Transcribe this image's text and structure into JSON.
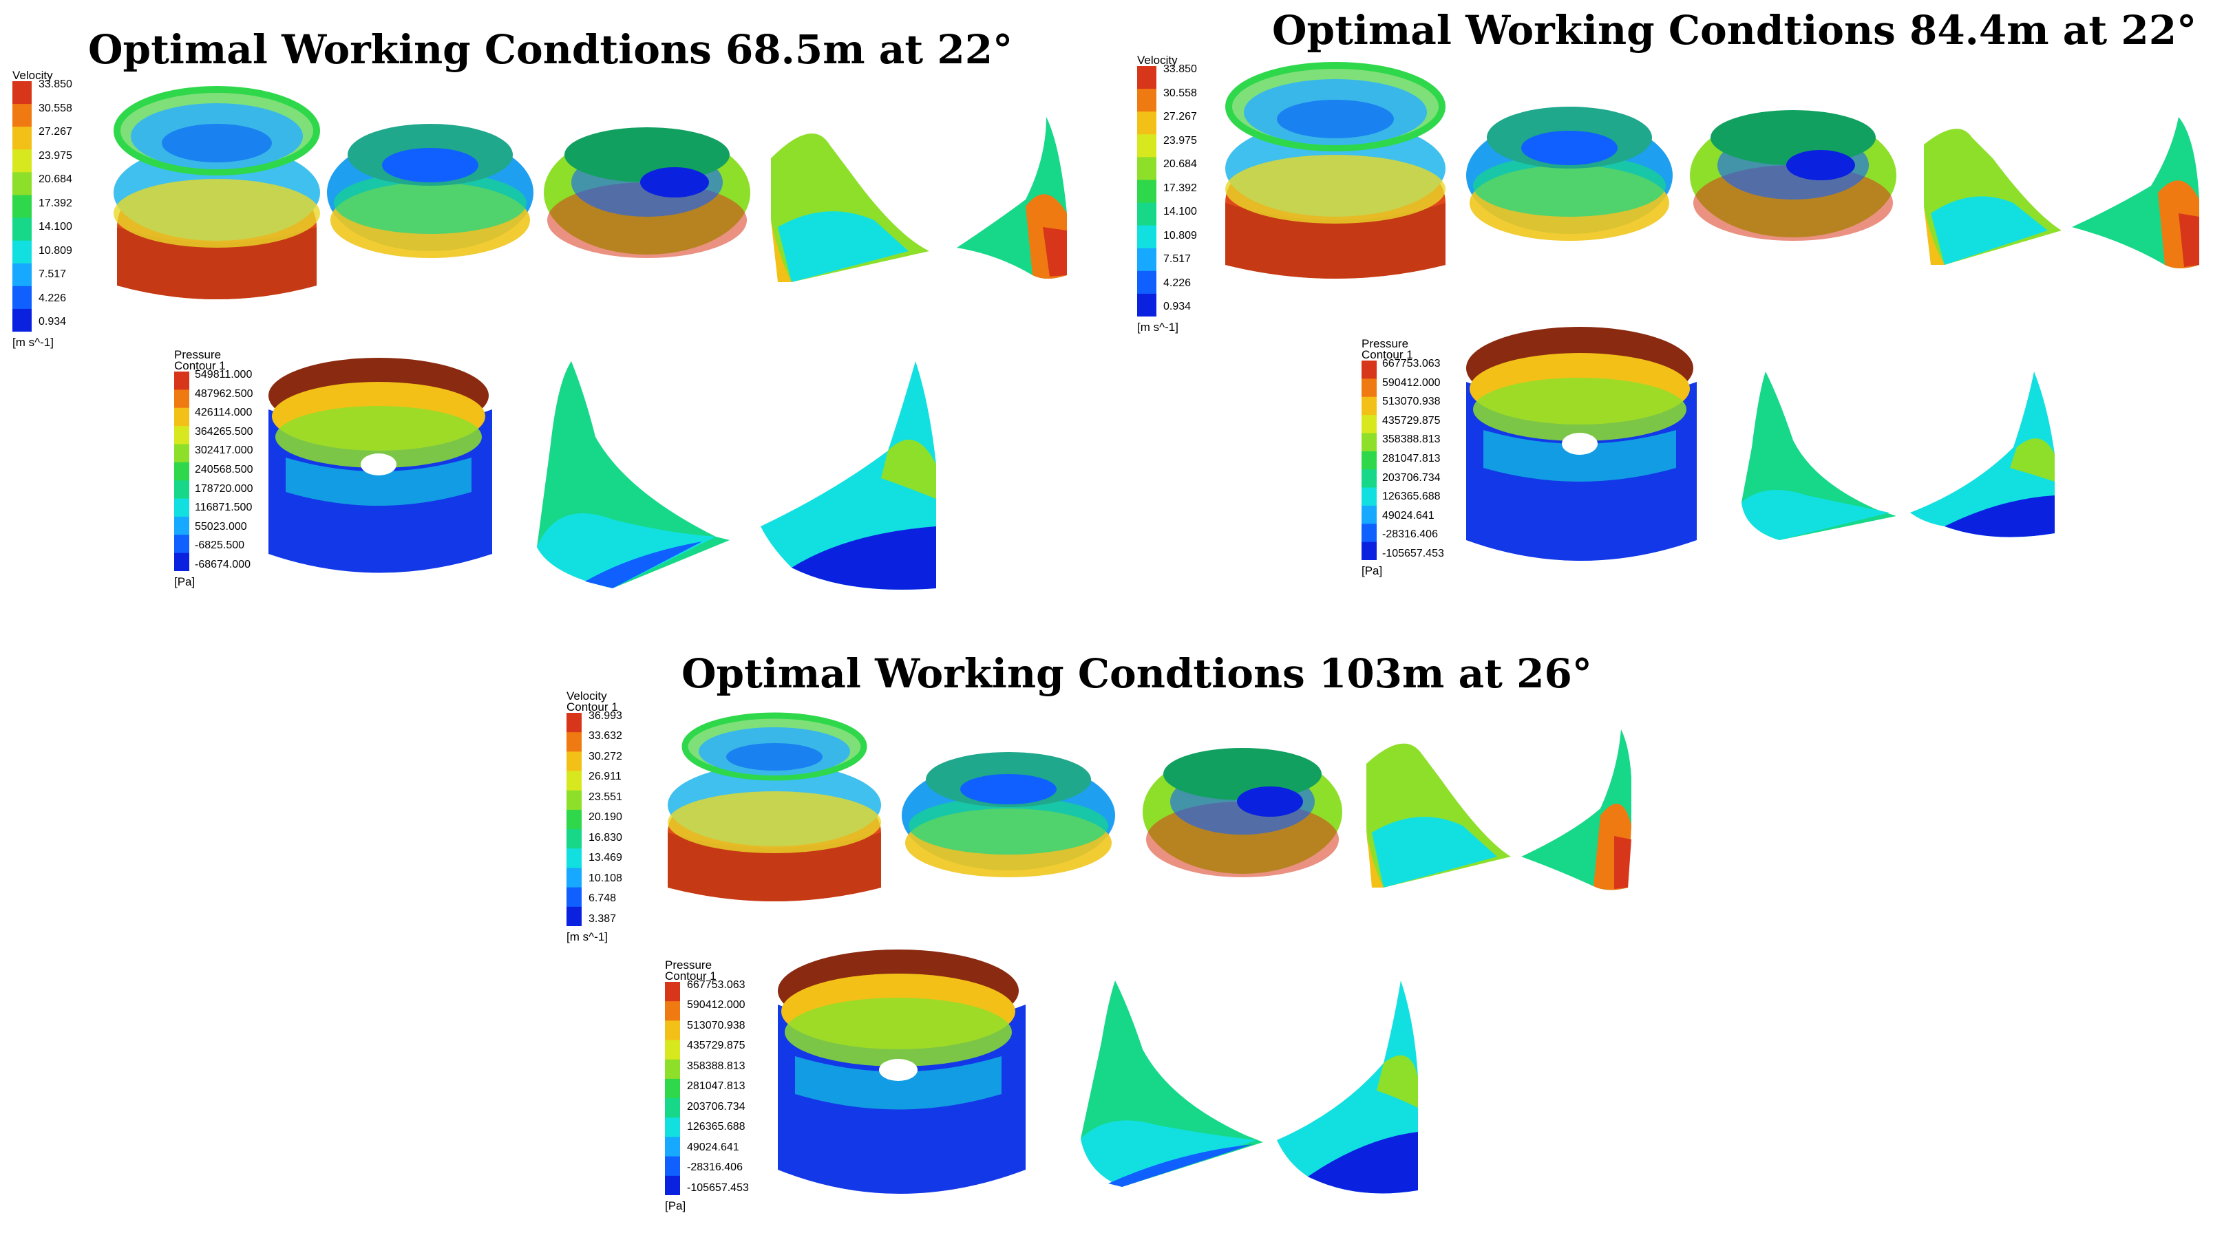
{
  "colormap": [
    "#0a22e0",
    "#1060ff",
    "#17a8ff",
    "#12e0e0",
    "#16d888",
    "#2ed84a",
    "#8edf2a",
    "#d8e81e",
    "#f3c018",
    "#f07a12",
    "#d8361a"
  ],
  "panels": [
    {
      "title": "Optimal Working Condtions 68.5m at 22°",
      "velocity": {
        "title": "Velocity",
        "subtitle": "",
        "unit": "[m s^-1]",
        "ticks": [
          "33.850",
          "30.558",
          "27.267",
          "23.975",
          "20.684",
          "17.392",
          "14.100",
          "10.809",
          "7.517",
          "4.226",
          "0.934"
        ]
      },
      "pressure": {
        "title": "Pressure",
        "subtitle": "Contour 1",
        "unit": "[Pa]",
        "ticks": [
          "549811.000",
          "487962.500",
          "426114.000",
          "364265.500",
          "302417.000",
          "240568.500",
          "178720.000",
          "116871.500",
          "55023.000",
          "-6825.500",
          "-68674.000"
        ]
      }
    },
    {
      "title": "Optimal Working Condtions 84.4m at 22°",
      "velocity": {
        "title": "Velocity",
        "subtitle": "",
        "unit": "[m s^-1]",
        "ticks": [
          "33.850",
          "30.558",
          "27.267",
          "23.975",
          "20.684",
          "17.392",
          "14.100",
          "10.809",
          "7.517",
          "4.226",
          "0.934"
        ]
      },
      "pressure": {
        "title": "Pressure",
        "subtitle": "Contour 1",
        "unit": "[Pa]",
        "ticks": [
          "667753.063",
          "590412.000",
          "513070.938",
          "435729.875",
          "358388.813",
          "281047.813",
          "203706.734",
          "126365.688",
          "49024.641",
          "-28316.406",
          "-105657.453"
        ]
      }
    },
    {
      "title": "Optimal Working Condtions 103m at 26°",
      "velocity": {
        "title": "Velocity",
        "subtitle": "Contour 1",
        "unit": "[m s^-1]",
        "ticks": [
          "36.993",
          "33.632",
          "30.272",
          "26.911",
          "23.551",
          "20.190",
          "16.830",
          "13.469",
          "10.108",
          "6.748",
          "3.387"
        ]
      },
      "pressure": {
        "title": "Pressure",
        "subtitle": "Contour 1",
        "unit": "[Pa]",
        "ticks": [
          "667753.063",
          "590412.000",
          "513070.938",
          "435729.875",
          "358388.813",
          "281047.813",
          "203706.734",
          "126365.688",
          "49024.641",
          "-28316.406",
          "-105657.453"
        ]
      }
    }
  ]
}
